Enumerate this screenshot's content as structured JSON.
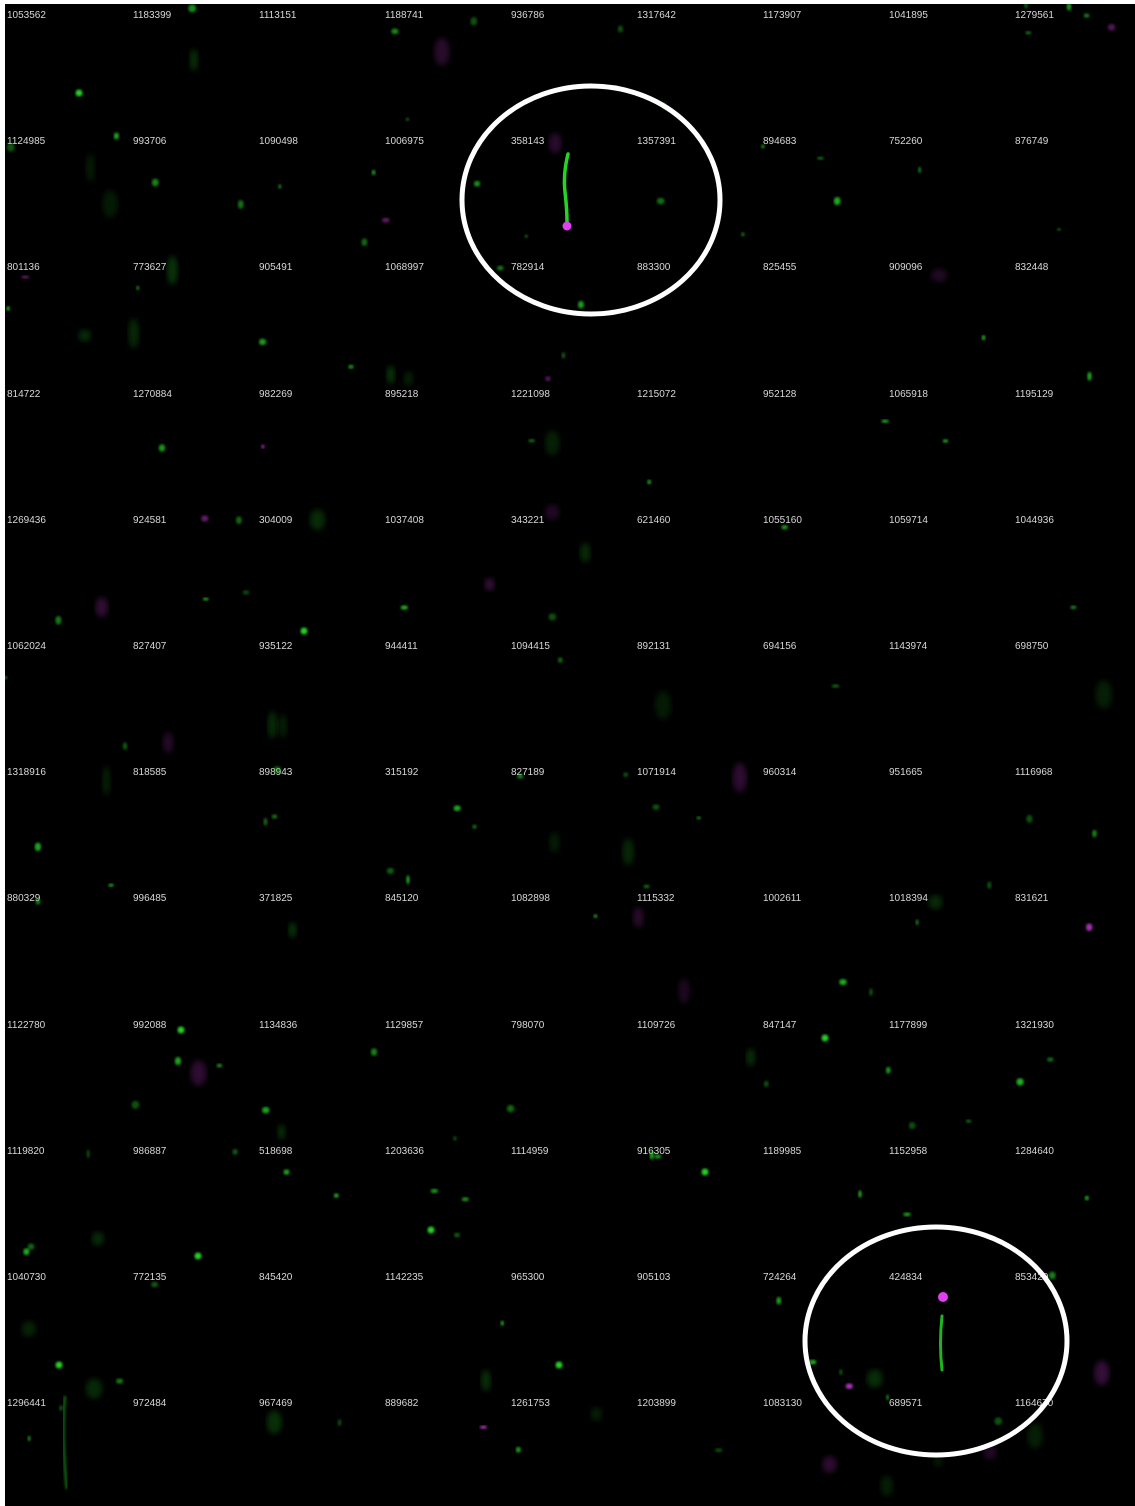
{
  "colors": {
    "background": "#000000",
    "label": "#d8d8d8",
    "gfp": "#26d426",
    "marker": "#e040f0",
    "highlight": "#ffffff"
  },
  "grid": {
    "rows": [
      [
        "1053562",
        "1183399",
        "1113151",
        "1188741",
        "936786",
        "1317642",
        "1173907",
        "1041895",
        "1279561"
      ],
      [
        "1124985",
        "993706",
        "1090498",
        "1006975",
        "358143",
        "1357391",
        "894683",
        "752260",
        "876749"
      ],
      [
        "801136",
        "773627",
        "905491",
        "1068997",
        "782914",
        "883300",
        "825455",
        "909096",
        "832448"
      ],
      [
        "814722",
        "1270884",
        "982269",
        "895218",
        "1221098",
        "1215072",
        "952128",
        "1065918",
        "1195129"
      ],
      [
        "1269436",
        "924581",
        "304009",
        "1037408",
        "343221",
        "621460",
        "1055160",
        "1059714",
        "1044936"
      ],
      [
        "1062024",
        "827407",
        "935122",
        "944411",
        "1094415",
        "892131",
        "694156",
        "1143974",
        "698750"
      ],
      [
        "1318916",
        "818585",
        "898943",
        "315192",
        "827189",
        "1071914",
        "960314",
        "951665",
        "1116968"
      ],
      [
        "880329",
        "996485",
        "371825",
        "845120",
        "1082898",
        "1115332",
        "1002611",
        "1018394",
        "831621"
      ],
      [
        "1122780",
        "992088",
        "1134836",
        "1129857",
        "798070",
        "1109726",
        "847147",
        "1177899",
        "1321930"
      ],
      [
        "1119820",
        "986887",
        "518698",
        "1203636",
        "1114959",
        "916305",
        "1189985",
        "1152958",
        "1284640"
      ],
      [
        "1040730",
        "772135",
        "845420",
        "1142235",
        "965300",
        "905103",
        "724264",
        "424834",
        "853420"
      ],
      [
        "1296441",
        "972484",
        "967469",
        "889682",
        "1261753",
        "1203899",
        "1083130",
        "689571",
        "1164670"
      ]
    ]
  },
  "highlights": [
    {
      "name": "highlight-ellipse-top"
    },
    {
      "name": "highlight-ellipse-bottom"
    }
  ]
}
